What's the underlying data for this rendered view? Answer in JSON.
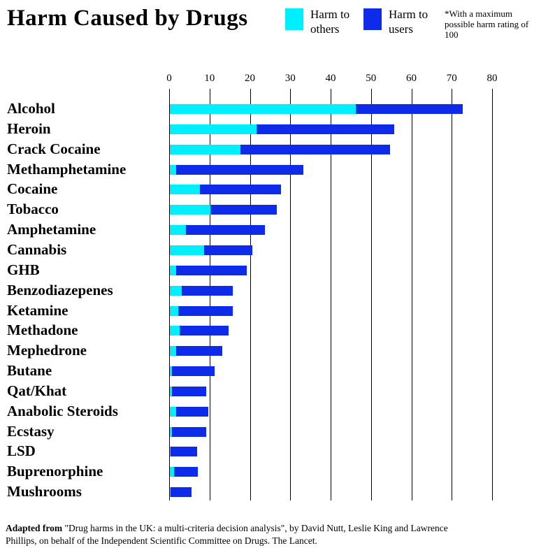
{
  "header": {
    "title": "Harm Caused by Drugs",
    "note": "*With a maximum possible harm rating of 100"
  },
  "footer": {
    "bold_prefix": "Adapted from",
    "rest": " \"Drug harms in the UK: a multi-criteria decision analysis\", by David Nutt, Leslie King and Lawrence Phillips, on behalf of the Independent Scientific Committee on Drugs. The Lancet."
  },
  "chart_data": {
    "type": "bar",
    "orientation": "horizontal",
    "stacked": true,
    "title": "Harm Caused by Drugs",
    "categories": [
      "Alcohol",
      "Heroin",
      "Crack Cocaine",
      "Methamphetamine",
      "Cocaine",
      "Tobacco",
      "Amphetamine",
      "Cannabis",
      "GHB",
      "Benzodiazepenes",
      "Ketamine",
      "Methadone",
      "Mephedrone",
      "Butane",
      "Qat/Khat",
      "Anabolic Steroids",
      "Ecstasy",
      "LSD",
      "Buprenorphine",
      "Mushrooms"
    ],
    "series": [
      {
        "name": "Harm to others",
        "color": "#00EFFF",
        "values": [
          46,
          21.5,
          17.5,
          1.5,
          7.5,
          10,
          4,
          8.5,
          1.5,
          3,
          2,
          2.5,
          1.5,
          0.5,
          0.5,
          1.5,
          0.5,
          0.2,
          1,
          0.2
        ]
      },
      {
        "name": "Harm to users",
        "color": "#0D2BE8",
        "values": [
          26.5,
          34,
          37,
          31.5,
          20,
          16.5,
          19.5,
          12,
          17.5,
          12.5,
          13.5,
          12,
          11.5,
          10.5,
          8.5,
          8,
          8.5,
          6.6,
          6,
          5.2
        ]
      }
    ],
    "x_axis": {
      "min": 0,
      "max": 80,
      "tick_step": 10,
      "ticks": [
        0,
        10,
        20,
        30,
        40,
        50,
        60,
        70,
        80
      ],
      "position": "top"
    },
    "grid": "vertical",
    "legend_position": "top"
  }
}
